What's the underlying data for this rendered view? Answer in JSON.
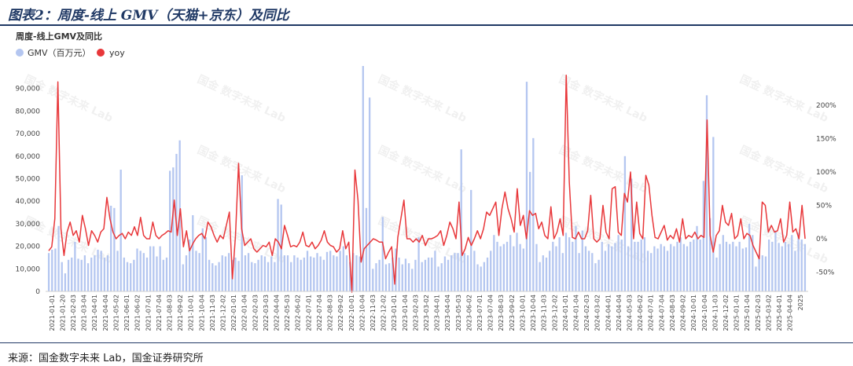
{
  "figure": {
    "title": "图表2：周度-线上 GMV（天猫+京东）及同比",
    "source": "来源：国金数字未来 Lab，国金证券研究所",
    "watermark": "国金 数字未来 Lab"
  },
  "chart_data": {
    "type": "bar+line",
    "title": "周度-线上GMV及同比",
    "legend": "top-left",
    "grid": false,
    "y_left": {
      "min": 0,
      "max": 90000,
      "ticks": [
        0,
        10000,
        20000,
        30000,
        40000,
        50000,
        60000,
        70000,
        80000,
        90000
      ],
      "tick_labels": [
        "0",
        "10,000",
        "20,000",
        "30,000",
        "40,000",
        "50,000",
        "60,000",
        "70,000",
        "80,000",
        "90,000"
      ]
    },
    "y_right": {
      "ticks": [
        -0.5,
        0,
        0.5,
        1,
        1.5,
        2
      ],
      "tick_labels": [
        "-50%",
        "0%",
        "50%",
        "100%",
        "150%",
        "200%"
      ]
    },
    "x_tick_labels": [
      "2021-01-01",
      "2021-01-20",
      "2021-02-03",
      "2021-03-04",
      "2021-04-01",
      "2021-04-04",
      "2021-05-02",
      "2021-06-01",
      "2021-06-02",
      "2021-07-01",
      "2021-07-04",
      "2021-08-03",
      "2021-09-02",
      "2021-10-01",
      "2021-10-04",
      "2021-11-03",
      "2021-12-02",
      "2022-01-01",
      "2022-01-04",
      "2022-02-03",
      "2022-03-03",
      "2022-04-04",
      "2022-05-03",
      "2022-06-02",
      "2022-07-01",
      "2022-07-04",
      "2022-08-03",
      "2022-09-02",
      "2022-10-01",
      "2022-10-04",
      "2022-11-03",
      "2022-12-02",
      "2023-01-01",
      "2023-01-04",
      "2023-02-03",
      "2023-03-02",
      "2023-04-01",
      "2023-04-04",
      "2023-05-03",
      "2023-06-02",
      "2023-07-01",
      "2023-07-04",
      "2023-08-03",
      "2023-09-02",
      "2023-10-01",
      "2023-10-04",
      "2023-11-03",
      "2023-12-02",
      "2024-01-01",
      "2024-01-04",
      "2024-02-03",
      "2024-03-02",
      "2024-04-01",
      "2024-04-04",
      "2024-05-03",
      "2024-06-02",
      "2024-07-01",
      "2024-07-04",
      "2024-08-03",
      "2024-09-02",
      "2024-10-01",
      "2024-10-04",
      "2024-11-03",
      "2024-12-02",
      "2025-01-01",
      "2025-01-04",
      "2025-02-03",
      "2025-03-02",
      "2025-04-01",
      "2025-04-04",
      "2025"
    ],
    "series": [
      {
        "name": "GMV（百万元）",
        "type": "bar",
        "color": "#b4c6f0",
        "values": [
          17000,
          18500,
          19000,
          29000,
          13000,
          8000,
          14000,
          15000,
          22000,
          14500,
          14000,
          16000,
          12500,
          15000,
          16000,
          18500,
          18000,
          15000,
          16000,
          38000,
          37000,
          18000,
          54000,
          15000,
          13000,
          12500,
          14000,
          19000,
          18000,
          17000,
          15000,
          20000,
          20000,
          15500,
          20000,
          14000,
          15000,
          53500,
          55000,
          61000,
          67000,
          12000,
          16000,
          23000,
          33800,
          18000,
          17000,
          28000,
          24000,
          14000,
          12500,
          11500,
          13000,
          16000,
          15500,
          17000,
          14000,
          15000,
          13500,
          51500,
          16000,
          17000,
          13000,
          12500,
          14000,
          16000,
          15500,
          13000,
          15500,
          13000,
          41000,
          38500,
          16000,
          16000,
          13000,
          16000,
          15000,
          14000,
          15000,
          18000,
          15500,
          15000,
          17000,
          15500,
          14000,
          17500,
          18000,
          16000,
          15500,
          18000,
          20000,
          16000,
          13000,
          17000,
          16000,
          15500,
          100000,
          37000,
          86000,
          10000,
          12500,
          14000,
          33000,
          12000,
          12500,
          15000,
          19000,
          15000,
          12000,
          14500,
          12500,
          10000,
          14000,
          24000,
          13000,
          14000,
          15000,
          15000,
          18000,
          11000,
          12500,
          15500,
          14000,
          16000,
          17000,
          17000,
          63000,
          17000,
          16000,
          45000,
          18000,
          12000,
          11000,
          13000,
          15000,
          18000,
          25000,
          22000,
          20000,
          21000,
          22000,
          25000,
          20000,
          26000,
          21000,
          19000,
          93000,
          53000,
          68000,
          21000,
          13000,
          16000,
          15000,
          18000,
          22000,
          20000,
          24000,
          17000,
          26000,
          24000,
          22000,
          29000,
          17000,
          27000,
          20000,
          18000,
          17000,
          12500,
          14000,
          22000,
          18000,
          21000,
          20000,
          21500,
          25000,
          23000,
          60000,
          20000,
          50000,
          22000,
          22000,
          23000,
          24000,
          18000,
          17000,
          20000,
          19000,
          21000,
          20000,
          18000,
          21000,
          20000,
          22000,
          24000,
          21000,
          20000,
          22000,
          23000,
          29000,
          23000,
          49000,
          87000,
          32500,
          68500,
          15000,
          21000,
          25000,
          22000,
          21000,
          22000,
          20000,
          22000,
          19000,
          19500,
          30000,
          25000,
          11000,
          16500,
          16000,
          15500,
          23000,
          22000,
          27000,
          21500,
          20000,
          22000,
          21000,
          25000,
          18000,
          26000,
          23000,
          21000
        ]
      },
      {
        "name": "yoy",
        "type": "line",
        "color": "#e8373a",
        "values": [
          -0.18,
          -0.12,
          0.3,
          2.35,
          0.15,
          -0.25,
          0.1,
          0.25,
          0.05,
          0.12,
          -0.05,
          0.35,
          0.15,
          -0.1,
          0.12,
          0.05,
          -0.05,
          0.1,
          0.15,
          0.62,
          0.3,
          0.1,
          0.0,
          0.05,
          0.08,
          0.0,
          0.1,
          0.05,
          0.18,
          0.05,
          0.32,
          0.05,
          0.0,
          0.0,
          0.25,
          0.05,
          0.0,
          0.05,
          0.08,
          0.12,
          0.1,
          0.58,
          0.05,
          0.45,
          -0.12,
          0.12,
          -0.18,
          -0.08,
          0.0,
          0.05,
          0.08,
          0.0,
          0.25,
          0.18,
          0.05,
          -0.05,
          0.05,
          0.0,
          0.2,
          0.4,
          -0.6,
          0.05,
          1.13,
          0.15,
          -0.1,
          -0.05,
          0.0,
          -0.15,
          -0.2,
          -0.15,
          -0.1,
          -0.12,
          -0.05,
          -0.25,
          0.0,
          -0.05,
          -0.15,
          0.2,
          0.05,
          -0.12,
          -0.1,
          -0.12,
          -0.05,
          0.1,
          -0.1,
          -0.12,
          -0.05,
          -0.15,
          -0.1,
          -0.02,
          0.12,
          -0.05,
          -0.1,
          -0.12,
          -0.2,
          -0.15,
          0.12,
          -0.15,
          -0.05,
          -0.8,
          1.03,
          0.58,
          -0.35,
          -0.15,
          -0.1,
          -0.05,
          0.0,
          -0.02,
          -0.05,
          -0.05,
          -0.3,
          -0.2,
          -0.12,
          -0.68,
          0.02,
          0.3,
          0.58,
          0.0,
          0.0,
          -0.05,
          0.0,
          -0.05,
          0.05,
          -0.1,
          0.0,
          0.0,
          0.02,
          0.05,
          0.12,
          -0.1,
          0.05,
          0.25,
          0.15,
          0.0,
          0.55,
          -0.25,
          -0.15,
          0.02,
          -0.1,
          0.0,
          0.12,
          0.0,
          0.15,
          0.4,
          0.35,
          0.45,
          0.55,
          0.05,
          0.45,
          0.7,
          0.45,
          0.3,
          0.1,
          0.75,
          0.2,
          0.35,
          0.0,
          0.42,
          0.35,
          0.38,
          0.15,
          0.25,
          0.05,
          0.0,
          0.48,
          0.0,
          0.1,
          0.3,
          0.05,
          2.45,
          0.85,
          0.02,
          0.0,
          0.1,
          0.0,
          0.0,
          0.12,
          0.65,
          0.0,
          -0.05,
          0.0,
          0.5,
          0.1,
          0.0,
          0.75,
          0.78,
          0.1,
          0.05,
          0.68,
          0.55,
          1.0,
          0.0,
          0.55,
          0.08,
          0.0,
          0.95,
          0.8,
          0.35,
          0.02,
          0.0,
          0.1,
          0.2,
          -0.02,
          0.05,
          0.0,
          0.15,
          -0.05,
          0.3,
          0.0,
          0.05,
          0.02,
          0.1,
          0.0,
          0.05,
          0.02,
          1.78,
          0.05,
          -0.2,
          0.05,
          0.12,
          0.5,
          0.25,
          0.2,
          0.38,
          0.0,
          0.05,
          0.3,
          0.0,
          0.08,
          0.05,
          -0.1,
          -0.2,
          -0.3,
          0.55,
          0.5,
          0.1,
          0.2,
          0.1,
          0.12,
          0.3,
          -0.05,
          0.05,
          0.55,
          0.1,
          0.15,
          0.0,
          0.5,
          0.0
        ]
      }
    ]
  }
}
